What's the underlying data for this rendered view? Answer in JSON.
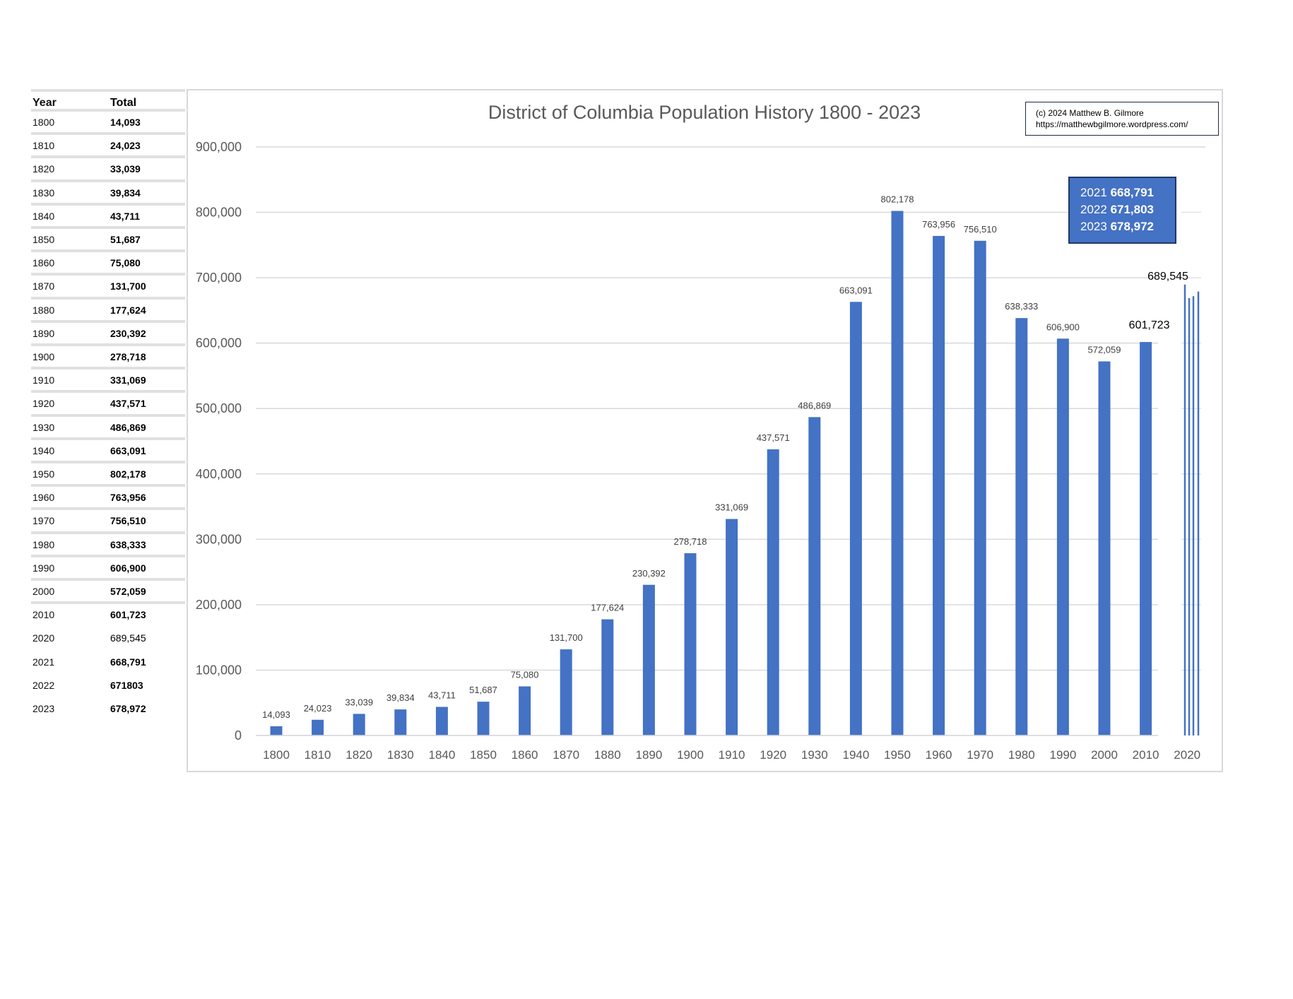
{
  "table": {
    "headers": [
      "Year",
      "Total"
    ],
    "rows": [
      [
        "1800",
        "14,093"
      ],
      [
        "1810",
        "24,023"
      ],
      [
        "1820",
        "33,039"
      ],
      [
        "1830",
        "39,834"
      ],
      [
        "1840",
        "43,711"
      ],
      [
        "1850",
        "51,687"
      ],
      [
        "1860",
        "75,080"
      ],
      [
        "1870",
        "131,700"
      ],
      [
        "1880",
        "177,624"
      ],
      [
        "1890",
        "230,392"
      ],
      [
        "1900",
        "278,718"
      ],
      [
        "1910",
        "331,069"
      ],
      [
        "1920",
        "437,571"
      ],
      [
        "1930",
        "486,869"
      ],
      [
        "1940",
        "663,091"
      ],
      [
        "1950",
        "802,178"
      ],
      [
        "1960",
        "763,956"
      ],
      [
        "1970",
        "756,510"
      ],
      [
        "1980",
        "638,333"
      ],
      [
        "1990",
        "606,900"
      ],
      [
        "2000",
        "572,059"
      ],
      [
        "2010",
        "601,723"
      ],
      [
        "2020",
        "689,545"
      ],
      [
        "2021",
        "668,791"
      ],
      [
        "2022",
        "671803"
      ],
      [
        "2023",
        "678,972"
      ]
    ]
  },
  "copyright": {
    "line1": "(c) 2024 Matthew B. Gilmore",
    "line2": "https://matthewbgilmore.wordpress.com/"
  },
  "callout": [
    {
      "year": "2021",
      "value": "668,791"
    },
    {
      "year": "2022",
      "value": "671,803"
    },
    {
      "year": "2023",
      "value": "678,972"
    }
  ],
  "chart_data": {
    "type": "bar",
    "title": "District of Columbia Population History 1800 - 2023",
    "xlabel": "",
    "ylabel": "",
    "ylim": [
      0,
      900000
    ],
    "yticks": [
      "0",
      "100,000",
      "200,000",
      "300,000",
      "400,000",
      "500,000",
      "600,000",
      "700,000",
      "800,000",
      "900,000"
    ],
    "grid": true,
    "categories": [
      "1800",
      "1810",
      "1820",
      "1830",
      "1840",
      "1850",
      "1860",
      "1870",
      "1880",
      "1890",
      "1900",
      "1910",
      "1920",
      "1930",
      "1940",
      "1950",
      "1960",
      "1970",
      "1980",
      "1990",
      "2000",
      "2010",
      "2020"
    ],
    "values": [
      14093,
      24023,
      33039,
      39834,
      43711,
      51687,
      75080,
      131700,
      177624,
      230392,
      278718,
      331069,
      437571,
      486869,
      663091,
      802178,
      763956,
      756510,
      638333,
      606900,
      572059,
      601723,
      null
    ],
    "labels": [
      "14,093",
      "24,023",
      "33,039",
      "39,834",
      "43,711",
      "51,687",
      "75,080",
      "131,700",
      "177,624",
      "230,392",
      "278,718",
      "331,069",
      "437,571",
      "486,869",
      "663,091",
      "802,178",
      "763,956",
      "756,510",
      "638,333",
      "606,900",
      "572,059",
      "601,723"
    ],
    "group_2020": {
      "label": "689,545",
      "years": [
        "2020",
        "2021",
        "2022",
        "2023"
      ],
      "values": [
        689545,
        668791,
        671803,
        678972
      ]
    },
    "bar_color": "#4472c4"
  }
}
